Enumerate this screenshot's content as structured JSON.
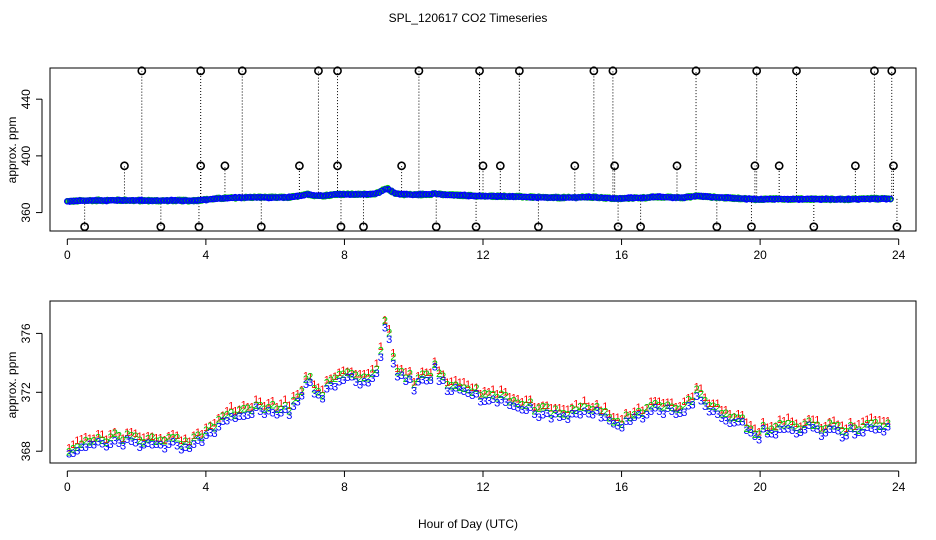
{
  "title": "SPL_120617  CO2 Timeseries",
  "xlabel": "Hour of Day (UTC)",
  "chart_data": [
    {
      "type": "scatter",
      "panel": "top",
      "ylabel": "approx. ppm",
      "xlim": [
        -0.5,
        24.5
      ],
      "ylim": [
        347,
        462
      ],
      "xticks": [
        0,
        4,
        8,
        12,
        16,
        20,
        24
      ],
      "yticks": [
        360,
        400,
        440
      ],
      "xtick_labels": [
        "0",
        "4",
        "8",
        "12",
        "16",
        "20",
        "24"
      ],
      "ytick_labels": [
        "360",
        "400",
        "440"
      ],
      "clip_high": 460,
      "clip_low": 350,
      "clip_mid": 393,
      "spike_hours_high": [
        2.15,
        3.85,
        5.05,
        7.25,
        7.8,
        10.15,
        11.9,
        13.05,
        15.2,
        15.75,
        18.15,
        19.9,
        21.05,
        23.3,
        23.8
      ],
      "spike_hours_mid": [
        1.65,
        3.85,
        4.55,
        6.7,
        7.8,
        9.65,
        12.0,
        12.5,
        14.65,
        15.8,
        17.6,
        19.85,
        20.55,
        22.75,
        23.85
      ],
      "spike_hours_low": [
        0.5,
        2.7,
        3.8,
        5.6,
        7.9,
        8.55,
        10.65,
        11.8,
        13.6,
        15.9,
        16.55,
        18.75,
        19.75,
        21.55,
        23.95
      ],
      "series": [
        {
          "name": "1",
          "color": "#ff0000"
        },
        {
          "name": "2",
          "color": "#00cd00"
        },
        {
          "name": "3",
          "color": "#0000ff"
        }
      ]
    },
    {
      "type": "scatter",
      "panel": "bottom",
      "ylabel": "approx. ppm",
      "xlim": [
        -0.5,
        24.5
      ],
      "ylim": [
        367.2,
        378.2
      ],
      "xticks": [
        0,
        4,
        8,
        12,
        16,
        20,
        24
      ],
      "yticks": [
        368,
        372,
        376
      ],
      "xtick_labels": [
        "0",
        "4",
        "8",
        "12",
        "16",
        "20",
        "24"
      ],
      "ytick_labels": [
        "368",
        "372",
        "376"
      ],
      "point_symbols": [
        "1",
        "2",
        "3"
      ],
      "trend_hours": [
        0,
        0.3,
        0.6,
        1.0,
        1.5,
        2.0,
        2.5,
        3.0,
        3.6,
        3.95,
        4.2,
        4.6,
        5.0,
        5.5,
        6.0,
        6.4,
        6.75,
        6.95,
        7.1,
        7.35,
        7.6,
        7.75,
        8.0,
        8.4,
        8.8,
        9.0,
        9.15,
        9.25,
        9.35,
        9.5,
        9.7,
        10.0,
        10.3,
        10.5,
        10.6,
        10.75,
        11.0,
        11.5,
        12.0,
        12.5,
        13.0,
        13.5,
        14.0,
        14.5,
        15.0,
        15.3,
        15.6,
        15.9,
        16.3,
        16.7,
        17.0,
        17.4,
        17.7,
        18.0,
        18.2,
        18.5,
        19.0,
        19.4,
        19.7,
        19.95,
        20.2,
        20.6,
        21.0,
        21.5,
        22.0,
        22.5,
        23.0,
        23.3,
        23.7
      ],
      "trend_ppm": [
        367.9,
        368.2,
        368.5,
        368.6,
        368.7,
        368.5,
        368.4,
        368.5,
        368.4,
        369.0,
        369.6,
        370.2,
        370.6,
        370.8,
        370.6,
        370.8,
        371.8,
        373.0,
        372.2,
        371.8,
        372.4,
        373.0,
        372.9,
        372.8,
        373.1,
        374.0,
        376.2,
        376.8,
        375.0,
        373.4,
        372.9,
        372.6,
        372.8,
        373.0,
        373.6,
        372.8,
        372.4,
        372.1,
        371.5,
        371.6,
        371.2,
        370.8,
        370.5,
        370.6,
        370.9,
        370.7,
        370.2,
        369.8,
        370.3,
        370.5,
        371.0,
        370.8,
        370.6,
        371.1,
        371.8,
        371.1,
        370.4,
        370.0,
        369.6,
        369.2,
        369.5,
        369.6,
        369.5,
        369.6,
        369.4,
        369.3,
        369.6,
        369.8,
        369.7
      ]
    }
  ]
}
